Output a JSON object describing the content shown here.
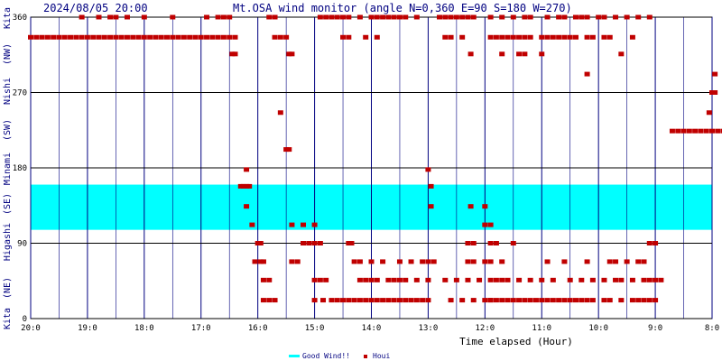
{
  "header": {
    "datetime": "2024/08/05 20:00",
    "title": "Mt.OSA wind monitor (angle N=0,360 E=90 S=180 W=270)"
  },
  "chart_data": {
    "type": "scatter",
    "title": "Mt.OSA wind monitor (angle N=0,360 E=90 S=180 W=270)",
    "xlabel": "Time elapsed (Hour)",
    "ylabel": "",
    "ylim": [
      0,
      360
    ],
    "xlim": [
      20,
      8
    ],
    "x_ticks": [
      "20:0",
      "19:0",
      "18:0",
      "17:0",
      "16:0",
      "15:0",
      "14:0",
      "13:0",
      "12:0",
      "11:0",
      "10:0",
      "9:0",
      "8:0"
    ],
    "y_ticks": [
      "0",
      "90",
      "180",
      "270",
      "360"
    ],
    "direction_labels": [
      "Kita",
      "(NE)",
      "Higashi",
      "(SE)",
      "Minami",
      "(SW)",
      "Nishi",
      "(NW)",
      "Kita"
    ],
    "grid": true,
    "good_wind_band": [
      106,
      160
    ],
    "series": [
      {
        "name": "Houi",
        "color": "#c00000",
        "points": [
          [
            20.0,
            336
          ],
          [
            19.9,
            336
          ],
          [
            19.8,
            336
          ],
          [
            19.7,
            336
          ],
          [
            19.6,
            336
          ],
          [
            19.5,
            336
          ],
          [
            19.4,
            336
          ],
          [
            19.3,
            336
          ],
          [
            19.2,
            336
          ],
          [
            19.1,
            336
          ],
          [
            19.0,
            336
          ],
          [
            18.9,
            336
          ],
          [
            18.8,
            336
          ],
          [
            18.7,
            336
          ],
          [
            18.6,
            336
          ],
          [
            18.5,
            336
          ],
          [
            18.4,
            336
          ],
          [
            18.3,
            336
          ],
          [
            18.2,
            336
          ],
          [
            18.1,
            336
          ],
          [
            18.0,
            336
          ],
          [
            17.9,
            336
          ],
          [
            17.8,
            336
          ],
          [
            17.7,
            336
          ],
          [
            17.6,
            336
          ],
          [
            17.5,
            336
          ],
          [
            17.4,
            336
          ],
          [
            17.3,
            336
          ],
          [
            17.2,
            336
          ],
          [
            17.1,
            336
          ],
          [
            17.0,
            336
          ],
          [
            16.9,
            336
          ],
          [
            16.8,
            336
          ],
          [
            16.7,
            336
          ],
          [
            16.6,
            336
          ],
          [
            16.5,
            336
          ],
          [
            16.4,
            336
          ],
          [
            19.1,
            360
          ],
          [
            18.8,
            360
          ],
          [
            18.6,
            360
          ],
          [
            18.5,
            360
          ],
          [
            18.3,
            360
          ],
          [
            18.0,
            360
          ],
          [
            17.5,
            360
          ],
          [
            16.9,
            360
          ],
          [
            16.7,
            360
          ],
          [
            16.6,
            360
          ],
          [
            16.5,
            360
          ],
          [
            16.4,
            316
          ],
          [
            16.45,
            316
          ],
          [
            16.3,
            158
          ],
          [
            16.25,
            158
          ],
          [
            16.2,
            158
          ],
          [
            16.15,
            158
          ],
          [
            16.2,
            178
          ],
          [
            16.2,
            134
          ],
          [
            16.1,
            112
          ],
          [
            16.0,
            90
          ],
          [
            15.95,
            90
          ],
          [
            16.05,
            68
          ],
          [
            15.95,
            68
          ],
          [
            15.9,
            68
          ],
          [
            15.9,
            46
          ],
          [
            15.8,
            46
          ],
          [
            15.9,
            22
          ],
          [
            15.8,
            22
          ],
          [
            15.7,
            22
          ],
          [
            15.8,
            360
          ],
          [
            15.7,
            360
          ],
          [
            15.7,
            336
          ],
          [
            15.6,
            336
          ],
          [
            15.5,
            336
          ],
          [
            15.6,
            246
          ],
          [
            15.5,
            202
          ],
          [
            15.45,
            202
          ],
          [
            15.4,
            112
          ],
          [
            15.2,
            112
          ],
          [
            15.0,
            112
          ],
          [
            15.45,
            316
          ],
          [
            15.4,
            316
          ],
          [
            15.4,
            68
          ],
          [
            15.3,
            68
          ],
          [
            15.2,
            90
          ],
          [
            15.1,
            90
          ],
          [
            15.0,
            90
          ],
          [
            14.9,
            90
          ],
          [
            15.0,
            46
          ],
          [
            14.9,
            46
          ],
          [
            14.8,
            46
          ],
          [
            15.0,
            22
          ],
          [
            14.85,
            22
          ],
          [
            14.7,
            22
          ],
          [
            14.6,
            22
          ],
          [
            14.5,
            22
          ],
          [
            14.4,
            22
          ],
          [
            14.3,
            22
          ],
          [
            14.2,
            22
          ],
          [
            14.1,
            22
          ],
          [
            14.0,
            22
          ],
          [
            13.9,
            22
          ],
          [
            13.8,
            22
          ],
          [
            13.7,
            22
          ],
          [
            13.6,
            22
          ],
          [
            13.5,
            22
          ],
          [
            13.4,
            22
          ],
          [
            13.3,
            22
          ],
          [
            13.2,
            22
          ],
          [
            13.1,
            22
          ],
          [
            13.0,
            22
          ],
          [
            14.9,
            360
          ],
          [
            14.8,
            360
          ],
          [
            14.7,
            360
          ],
          [
            14.6,
            360
          ],
          [
            14.5,
            360
          ],
          [
            14.4,
            360
          ],
          [
            14.2,
            360
          ],
          [
            14.0,
            360
          ],
          [
            13.9,
            360
          ],
          [
            13.8,
            360
          ],
          [
            13.7,
            360
          ],
          [
            13.6,
            360
          ],
          [
            13.5,
            360
          ],
          [
            13.4,
            360
          ],
          [
            13.2,
            360
          ],
          [
            14.5,
            336
          ],
          [
            14.4,
            336
          ],
          [
            14.1,
            336
          ],
          [
            13.9,
            336
          ],
          [
            14.4,
            90
          ],
          [
            14.35,
            90
          ],
          [
            14.3,
            68
          ],
          [
            14.2,
            68
          ],
          [
            14.2,
            46
          ],
          [
            14.1,
            46
          ],
          [
            14.0,
            46
          ],
          [
            13.9,
            46
          ],
          [
            13.7,
            46
          ],
          [
            13.6,
            46
          ],
          [
            13.5,
            46
          ],
          [
            14.0,
            68
          ],
          [
            13.8,
            68
          ],
          [
            13.5,
            68
          ],
          [
            13.3,
            68
          ],
          [
            13.4,
            46
          ],
          [
            13.2,
            46
          ],
          [
            13.0,
            46
          ],
          [
            13.0,
            178
          ],
          [
            12.95,
            158
          ],
          [
            12.95,
            134
          ],
          [
            13.1,
            68
          ],
          [
            13.0,
            68
          ],
          [
            12.9,
            68
          ],
          [
            12.8,
            360
          ],
          [
            12.7,
            360
          ],
          [
            12.6,
            360
          ],
          [
            12.5,
            360
          ],
          [
            12.4,
            360
          ],
          [
            12.3,
            360
          ],
          [
            12.2,
            360
          ],
          [
            12.7,
            336
          ],
          [
            12.6,
            336
          ],
          [
            12.4,
            336
          ],
          [
            12.25,
            316
          ],
          [
            12.7,
            46
          ],
          [
            12.5,
            46
          ],
          [
            12.3,
            46
          ],
          [
            12.1,
            46
          ],
          [
            12.6,
            22
          ],
          [
            12.4,
            22
          ],
          [
            12.2,
            22
          ],
          [
            12.0,
            22
          ],
          [
            11.9,
            22
          ],
          [
            12.3,
            90
          ],
          [
            12.2,
            90
          ],
          [
            11.9,
            90
          ],
          [
            12.3,
            68
          ],
          [
            12.2,
            68
          ],
          [
            12.0,
            68
          ],
          [
            11.9,
            68
          ],
          [
            11.7,
            68
          ],
          [
            12.25,
            134
          ],
          [
            12.0,
            134
          ],
          [
            12.0,
            112
          ],
          [
            11.9,
            112
          ],
          [
            11.9,
            22
          ],
          [
            11.8,
            22
          ],
          [
            11.7,
            22
          ],
          [
            11.6,
            22
          ],
          [
            11.5,
            22
          ],
          [
            11.4,
            22
          ],
          [
            11.3,
            22
          ],
          [
            11.2,
            22
          ],
          [
            11.1,
            22
          ],
          [
            11.0,
            22
          ],
          [
            10.9,
            22
          ],
          [
            10.8,
            22
          ],
          [
            10.7,
            22
          ],
          [
            10.6,
            22
          ],
          [
            10.5,
            22
          ],
          [
            10.4,
            22
          ],
          [
            10.3,
            22
          ],
          [
            10.2,
            22
          ],
          [
            10.1,
            22
          ],
          [
            11.9,
            46
          ],
          [
            11.8,
            46
          ],
          [
            11.7,
            46
          ],
          [
            11.6,
            46
          ],
          [
            11.4,
            46
          ],
          [
            11.2,
            46
          ],
          [
            11.0,
            46
          ],
          [
            11.8,
            90
          ],
          [
            11.5,
            90
          ],
          [
            11.9,
            360
          ],
          [
            11.7,
            360
          ],
          [
            11.5,
            360
          ],
          [
            11.3,
            360
          ],
          [
            11.2,
            360
          ],
          [
            11.9,
            336
          ],
          [
            11.8,
            336
          ],
          [
            11.7,
            336
          ],
          [
            11.6,
            336
          ],
          [
            11.5,
            336
          ],
          [
            11.4,
            336
          ],
          [
            11.3,
            336
          ],
          [
            11.2,
            336
          ],
          [
            11.0,
            336
          ],
          [
            10.9,
            336
          ],
          [
            10.8,
            336
          ],
          [
            10.7,
            336
          ],
          [
            10.6,
            336
          ],
          [
            10.5,
            336
          ],
          [
            10.4,
            336
          ],
          [
            10.2,
            336
          ],
          [
            10.1,
            336
          ],
          [
            9.9,
            336
          ],
          [
            9.8,
            336
          ],
          [
            11.7,
            316
          ],
          [
            11.4,
            316
          ],
          [
            11.3,
            316
          ],
          [
            11.0,
            316
          ],
          [
            10.9,
            360
          ],
          [
            10.7,
            360
          ],
          [
            10.6,
            360
          ],
          [
            10.4,
            360
          ],
          [
            10.3,
            360
          ],
          [
            10.2,
            360
          ],
          [
            10.0,
            360
          ],
          [
            9.9,
            360
          ],
          [
            9.7,
            360
          ],
          [
            9.5,
            360
          ],
          [
            9.3,
            360
          ],
          [
            9.1,
            360
          ],
          [
            10.9,
            68
          ],
          [
            10.6,
            68
          ],
          [
            10.2,
            68
          ],
          [
            9.8,
            68
          ],
          [
            10.8,
            46
          ],
          [
            10.5,
            46
          ],
          [
            10.3,
            46
          ],
          [
            10.1,
            46
          ],
          [
            9.9,
            46
          ],
          [
            9.7,
            46
          ],
          [
            9.9,
            22
          ],
          [
            9.8,
            22
          ],
          [
            9.6,
            22
          ],
          [
            9.4,
            22
          ],
          [
            9.3,
            22
          ],
          [
            9.2,
            22
          ],
          [
            9.1,
            22
          ],
          [
            9.0,
            22
          ],
          [
            10.2,
            292
          ],
          [
            9.6,
            316
          ],
          [
            9.4,
            336
          ],
          [
            9.7,
            68
          ],
          [
            9.5,
            68
          ],
          [
            9.3,
            68
          ],
          [
            9.2,
            68
          ],
          [
            9.6,
            46
          ],
          [
            9.4,
            46
          ],
          [
            9.2,
            46
          ],
          [
            9.1,
            46
          ],
          [
            9.0,
            46
          ],
          [
            8.9,
            46
          ],
          [
            9.1,
            90
          ],
          [
            9.0,
            90
          ],
          [
            8.7,
            224
          ],
          [
            8.6,
            224
          ],
          [
            8.5,
            224
          ],
          [
            8.4,
            224
          ],
          [
            8.3,
            224
          ],
          [
            8.2,
            224
          ],
          [
            8.1,
            224
          ],
          [
            8.0,
            224
          ],
          [
            7.9,
            224
          ],
          [
            7.8,
            224
          ],
          [
            7.7,
            224
          ],
          [
            8.05,
            246
          ],
          [
            8.0,
            270
          ],
          [
            7.95,
            270
          ],
          [
            7.95,
            292
          ]
        ]
      }
    ],
    "legend": [
      {
        "label": "Good Wind!!",
        "color": "#00ffff"
      },
      {
        "label": "Houi",
        "color": "#c00000"
      }
    ],
    "legend_placement": "bottom-center"
  }
}
